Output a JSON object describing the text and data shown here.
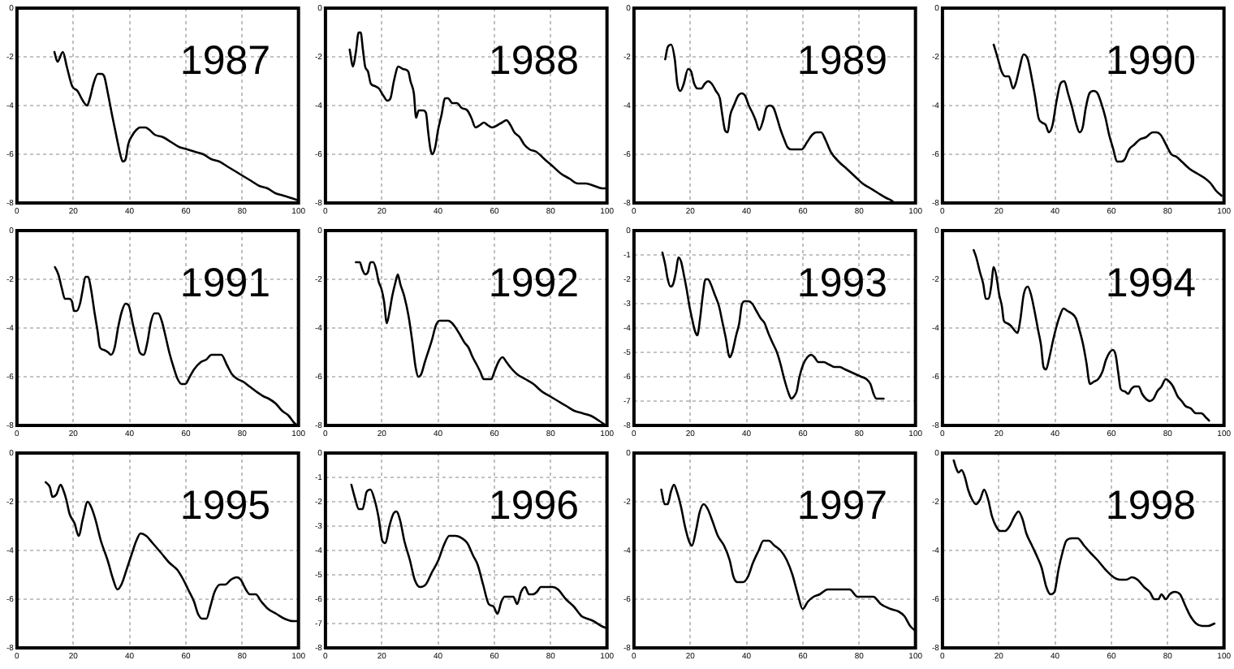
{
  "chart_data": [
    {
      "type": "line",
      "title": "1987",
      "color": "#000000",
      "xlim": [
        0,
        100
      ],
      "ylim": [
        -8,
        0
      ],
      "xticks": [
        0,
        20,
        40,
        60,
        80,
        100
      ],
      "yticks": [
        0,
        -2,
        -4,
        -6,
        -8
      ],
      "grid": true,
      "x": [
        13.3,
        14.4,
        16.3,
        17.7,
        19.6,
        21.5,
        23.4,
        24.9,
        25.9,
        27.2,
        28.7,
        30.0,
        31.0,
        32.3,
        33.8,
        35.4,
        36.9,
        37.6,
        38.6,
        39.5,
        41.1,
        42.4,
        43.7,
        45.6,
        47.1,
        49.0,
        51.9,
        54.8,
        57.6,
        60.5,
        63.3,
        66.2,
        69.0,
        71.9,
        74.7,
        77.6,
        80.4,
        83.3,
        86.1,
        89.0,
        91.8,
        94.7,
        97.5,
        100
      ],
      "values": [
        -1.8,
        -2.2,
        -1.8,
        -2.4,
        -3.2,
        -3.4,
        -3.8,
        -4.0,
        -3.7,
        -3.1,
        -2.7,
        -2.7,
        -2.8,
        -3.5,
        -4.4,
        -5.3,
        -6.1,
        -6.3,
        -6.2,
        -5.6,
        -5.2,
        -5.0,
        -4.9,
        -4.9,
        -5.0,
        -5.2,
        -5.3,
        -5.5,
        -5.7,
        -5.8,
        -5.9,
        -6.0,
        -6.2,
        -6.3,
        -6.5,
        -6.7,
        -6.9,
        -7.1,
        -7.3,
        -7.4,
        -7.6,
        -7.7,
        -7.8,
        -7.9
      ]
    },
    {
      "type": "line",
      "title": "1988",
      "color": "#000000",
      "xlim": [
        0,
        100
      ],
      "ylim": [
        -8,
        0
      ],
      "xticks": [
        0,
        20,
        40,
        60,
        80,
        100
      ],
      "yticks": [
        0,
        -2,
        -4,
        -6,
        -8
      ],
      "grid": true,
      "x": [
        8.6,
        9.8,
        10.8,
        11.8,
        12.5,
        13.3,
        14.1,
        15.1,
        16.1,
        17.6,
        19.0,
        20.6,
        22.0,
        23.1,
        24.3,
        25.9,
        27.5,
        29.4,
        30.2,
        31.4,
        32.2,
        33.1,
        34.7,
        35.7,
        36.5,
        37.3,
        38.0,
        39.0,
        40.0,
        41.2,
        42.5,
        43.5,
        45.1,
        46.7,
        48.4,
        50.4,
        51.8,
        53.3,
        54.9,
        56.3,
        57.6,
        59.2,
        61.2,
        62.7,
        64.3,
        65.7,
        67.1,
        69.0,
        70.6,
        72.5,
        74.9,
        77.8,
        80.8,
        83.7,
        86.7,
        89.6,
        92.5,
        95.5,
        98.4,
        100
      ],
      "values": [
        -1.7,
        -2.4,
        -1.8,
        -1.0,
        -1.0,
        -1.7,
        -2.4,
        -2.6,
        -3.1,
        -3.2,
        -3.3,
        -3.6,
        -3.8,
        -3.7,
        -3.0,
        -2.4,
        -2.5,
        -2.6,
        -3.0,
        -3.5,
        -4.5,
        -4.2,
        -4.2,
        -4.3,
        -5.1,
        -5.8,
        -6.0,
        -5.7,
        -5.0,
        -4.4,
        -3.7,
        -3.7,
        -3.9,
        -3.9,
        -4.1,
        -4.2,
        -4.5,
        -4.9,
        -4.8,
        -4.7,
        -4.8,
        -4.9,
        -4.8,
        -4.7,
        -4.6,
        -4.8,
        -5.1,
        -5.3,
        -5.6,
        -5.8,
        -5.9,
        -6.2,
        -6.5,
        -6.8,
        -7.0,
        -7.2,
        -7.2,
        -7.3,
        -7.4,
        -7.4
      ]
    },
    {
      "type": "line",
      "title": "1989",
      "color": "#000000",
      "xlim": [
        0,
        100
      ],
      "ylim": [
        -8,
        0
      ],
      "xticks": [
        0,
        20,
        40,
        60,
        80,
        100
      ],
      "yticks": [
        0,
        -2,
        -4,
        -6,
        -8
      ],
      "grid": true,
      "x": [
        11.1,
        12.0,
        13.2,
        14.5,
        15.4,
        16.5,
        17.7,
        19.2,
        20.3,
        21.4,
        22.6,
        23.9,
        25.2,
        26.3,
        27.6,
        29.1,
        30.5,
        31.4,
        32.3,
        33.3,
        34.2,
        35.5,
        37.0,
        38.3,
        39.5,
        40.8,
        42.1,
        43.2,
        44.5,
        45.9,
        47.0,
        48.3,
        49.6,
        50.8,
        52.1,
        53.4,
        54.5,
        55.8,
        57.7,
        59.6,
        61.5,
        63.3,
        64.8,
        66.5,
        68.0,
        69.9,
        72.7,
        75.6,
        78.4,
        81.2,
        84.0,
        86.8,
        89.7,
        91.5,
        92.5
      ],
      "values": [
        -2.1,
        -1.6,
        -1.5,
        -2.1,
        -3.1,
        -3.4,
        -3.1,
        -2.5,
        -2.6,
        -3.1,
        -3.3,
        -3.3,
        -3.1,
        -3.0,
        -3.1,
        -3.4,
        -3.7,
        -4.4,
        -5.0,
        -5.1,
        -4.4,
        -4.0,
        -3.6,
        -3.5,
        -3.6,
        -4.0,
        -4.3,
        -4.6,
        -5.0,
        -4.6,
        -4.1,
        -4.0,
        -4.1,
        -4.5,
        -5.0,
        -5.4,
        -5.7,
        -5.8,
        -5.8,
        -5.8,
        -5.5,
        -5.2,
        -5.1,
        -5.1,
        -5.4,
        -5.9,
        -6.3,
        -6.6,
        -6.9,
        -7.2,
        -7.4,
        -7.6,
        -7.8,
        -7.9,
        -8.0
      ]
    },
    {
      "type": "line",
      "title": "1990",
      "color": "#000000",
      "xlim": [
        0,
        100
      ],
      "ylim": [
        -8,
        0
      ],
      "xticks": [
        0,
        20,
        40,
        60,
        80,
        100
      ],
      "yticks": [
        0,
        -2,
        -4,
        -6,
        -8
      ],
      "grid": true,
      "x": [
        18.2,
        19.5,
        21.0,
        22.3,
        23.6,
        25.1,
        26.0,
        27.3,
        28.8,
        30.3,
        31.6,
        33.0,
        34.1,
        35.4,
        36.7,
        37.8,
        39.1,
        40.4,
        41.9,
        43.3,
        44.6,
        46.1,
        47.6,
        48.7,
        49.8,
        50.9,
        52.2,
        53.7,
        55.1,
        56.4,
        57.9,
        59.2,
        60.7,
        62.0,
        63.5,
        64.8,
        66.3,
        68.2,
        70.0,
        72.3,
        74.7,
        76.0,
        77.5,
        79.4,
        81.3,
        83.1,
        85.0,
        87.8,
        90.6,
        93.4,
        95.3,
        97.2,
        99.1
      ],
      "values": [
        -1.5,
        -2.0,
        -2.6,
        -2.8,
        -2.8,
        -3.3,
        -3.1,
        -2.5,
        -1.9,
        -2.1,
        -2.8,
        -3.7,
        -4.5,
        -4.7,
        -4.8,
        -5.1,
        -4.8,
        -3.9,
        -3.1,
        -3.0,
        -3.5,
        -4.1,
        -4.8,
        -5.1,
        -4.9,
        -4.1,
        -3.5,
        -3.4,
        -3.5,
        -3.9,
        -4.5,
        -5.2,
        -5.8,
        -6.3,
        -6.3,
        -6.2,
        -5.8,
        -5.6,
        -5.4,
        -5.3,
        -5.1,
        -5.1,
        -5.2,
        -5.6,
        -6.0,
        -6.1,
        -6.3,
        -6.6,
        -6.8,
        -7.0,
        -7.2,
        -7.5,
        -7.7
      ]
    },
    {
      "type": "line",
      "title": "1991",
      "color": "#000000",
      "xlim": [
        0,
        100
      ],
      "ylim": [
        -8,
        0
      ],
      "xticks": [
        0,
        20,
        40,
        60,
        80,
        100
      ],
      "yticks": [
        0,
        -2,
        -4,
        -6,
        -8
      ],
      "grid": true,
      "x": [
        13.5,
        14.7,
        16.0,
        17.0,
        18.5,
        19.5,
        20.3,
        21.2,
        22.4,
        23.4,
        24.3,
        25.3,
        26.3,
        27.6,
        28.6,
        29.5,
        30.9,
        32.4,
        33.4,
        34.7,
        35.9,
        37.3,
        38.6,
        39.8,
        41.1,
        42.5,
        43.6,
        45.0,
        46.3,
        47.5,
        48.8,
        50.2,
        51.4,
        52.7,
        54.1,
        55.6,
        57.1,
        58.5,
        59.8,
        61.4,
        62.9,
        65.3,
        67.2,
        69.1,
        71.0,
        72.6,
        74.5,
        76.4,
        78.4,
        80.3,
        82.6,
        84.9,
        87.5,
        89.4,
        91.9,
        94.2,
        96.5,
        98.5,
        99.6
      ],
      "values": [
        -1.5,
        -1.8,
        -2.4,
        -2.8,
        -2.8,
        -2.9,
        -3.3,
        -3.3,
        -3.0,
        -2.4,
        -1.9,
        -1.9,
        -2.4,
        -3.4,
        -4.1,
        -4.8,
        -4.9,
        -5.0,
        -5.1,
        -4.8,
        -4.0,
        -3.3,
        -3.0,
        -3.1,
        -3.8,
        -4.5,
        -5.0,
        -5.1,
        -4.6,
        -3.8,
        -3.4,
        -3.4,
        -3.7,
        -4.3,
        -5.0,
        -5.6,
        -6.1,
        -6.3,
        -6.3,
        -6.0,
        -5.7,
        -5.4,
        -5.3,
        -5.1,
        -5.1,
        -5.1,
        -5.5,
        -5.9,
        -6.1,
        -6.2,
        -6.4,
        -6.6,
        -6.8,
        -6.9,
        -7.1,
        -7.4,
        -7.6,
        -7.9,
        -8.0
      ]
    },
    {
      "type": "line",
      "title": "1992",
      "color": "#000000",
      "xlim": [
        0,
        100
      ],
      "ylim": [
        -8,
        0
      ],
      "xticks": [
        0,
        20,
        40,
        60,
        80,
        100
      ],
      "yticks": [
        0,
        -2,
        -4,
        -6,
        -8
      ],
      "grid": true,
      "x": [
        10.8,
        12.2,
        13.1,
        14.1,
        15.1,
        16.0,
        17.0,
        18.0,
        18.9,
        19.9,
        20.8,
        21.8,
        22.8,
        23.7,
        24.7,
        25.7,
        26.6,
        28.0,
        29.5,
        30.9,
        32.0,
        33.0,
        34.0,
        35.3,
        36.7,
        37.8,
        39.2,
        40.5,
        42.1,
        43.6,
        45.0,
        46.3,
        47.9,
        49.4,
        50.8,
        52.3,
        53.7,
        55.0,
        56.2,
        57.5,
        58.9,
        60.0,
        61.4,
        62.9,
        64.3,
        65.6,
        68.1,
        71.0,
        73.9,
        76.8,
        79.7,
        82.6,
        85.5,
        88.4,
        91.3,
        94.2,
        97.1,
        99.6
      ],
      "values": [
        -1.3,
        -1.3,
        -1.6,
        -1.8,
        -1.7,
        -1.3,
        -1.3,
        -1.6,
        -2.1,
        -2.4,
        -2.9,
        -3.8,
        -3.3,
        -2.7,
        -2.2,
        -1.8,
        -2.2,
        -2.7,
        -3.5,
        -4.6,
        -5.6,
        -6.0,
        -5.9,
        -5.4,
        -4.9,
        -4.5,
        -3.9,
        -3.7,
        -3.7,
        -3.7,
        -3.8,
        -4.0,
        -4.3,
        -4.6,
        -4.8,
        -5.2,
        -5.5,
        -5.8,
        -6.1,
        -6.1,
        -6.1,
        -5.8,
        -5.4,
        -5.2,
        -5.4,
        -5.6,
        -5.9,
        -6.1,
        -6.3,
        -6.6,
        -6.8,
        -7.0,
        -7.2,
        -7.4,
        -7.5,
        -7.6,
        -7.8,
        -8.0
      ]
    },
    {
      "type": "line",
      "title": "1993",
      "color": "#000000",
      "xlim": [
        0,
        100
      ],
      "ylim": [
        -8,
        0
      ],
      "xticks": [
        0,
        20,
        40,
        60,
        80,
        100
      ],
      "yticks": [
        0,
        -1,
        -2,
        -3,
        -4,
        -5,
        -6,
        -7,
        -8
      ],
      "grid": true,
      "x": [
        10.1,
        11.1,
        12.0,
        13.0,
        13.9,
        14.9,
        15.8,
        16.8,
        17.7,
        18.7,
        19.7,
        20.6,
        21.6,
        22.5,
        23.5,
        24.4,
        25.4,
        26.3,
        27.3,
        28.6,
        30.2,
        31.5,
        32.6,
        34.0,
        34.9,
        36.3,
        37.4,
        38.2,
        39.3,
        40.6,
        42.0,
        43.5,
        45.0,
        46.4,
        47.7,
        49.2,
        50.8,
        52.1,
        53.4,
        55.0,
        55.9,
        56.9,
        57.8,
        58.8,
        60.1,
        61.6,
        63.0,
        64.1,
        65.5,
        67.4,
        69.3,
        71.2,
        73.1,
        75.0,
        76.9,
        78.8,
        80.7,
        82.6,
        84.0,
        85.1,
        86.1,
        87.4,
        88.7
      ],
      "values": [
        -0.9,
        -1.4,
        -2.0,
        -2.3,
        -2.2,
        -1.7,
        -1.1,
        -1.3,
        -1.8,
        -2.4,
        -3.1,
        -3.6,
        -4.1,
        -4.3,
        -3.6,
        -2.7,
        -2.0,
        -2.0,
        -2.2,
        -2.6,
        -3.1,
        -3.8,
        -4.4,
        -5.2,
        -5.0,
        -4.3,
        -3.8,
        -3.1,
        -2.9,
        -2.9,
        -3.0,
        -3.3,
        -3.6,
        -3.8,
        -4.2,
        -4.6,
        -5.0,
        -5.5,
        -6.1,
        -6.7,
        -6.9,
        -6.8,
        -6.6,
        -6.0,
        -5.5,
        -5.2,
        -5.1,
        -5.2,
        -5.4,
        -5.4,
        -5.5,
        -5.6,
        -5.6,
        -5.7,
        -5.8,
        -5.9,
        -6.0,
        -6.1,
        -6.3,
        -6.7,
        -6.9,
        -6.9,
        -6.9
      ]
    },
    {
      "type": "line",
      "title": "1994",
      "color": "#000000",
      "xlim": [
        0,
        100
      ],
      "ylim": [
        -8,
        0
      ],
      "xticks": [
        0,
        20,
        40,
        60,
        80,
        100
      ],
      "yticks": [
        0,
        -2,
        -4,
        -6,
        -8
      ],
      "grid": true,
      "x": [
        11.1,
        12.0,
        13.3,
        14.5,
        15.4,
        16.4,
        17.3,
        18.2,
        19.2,
        20.1,
        21.1,
        21.8,
        22.9,
        24.2,
        25.6,
        26.7,
        27.6,
        28.9,
        30.3,
        31.4,
        32.7,
        34.0,
        35.0,
        35.9,
        36.8,
        38.0,
        39.3,
        40.6,
        41.7,
        43.0,
        44.4,
        45.9,
        47.4,
        48.7,
        50.0,
        51.1,
        52.4,
        53.8,
        55.3,
        56.8,
        58.1,
        59.4,
        60.5,
        61.5,
        62.4,
        63.3,
        64.7,
        66.0,
        67.1,
        68.4,
        69.7,
        70.9,
        72.2,
        73.7,
        75.0,
        76.3,
        77.8,
        79.3,
        80.6,
        81.9,
        83.5,
        85.0,
        86.3,
        88.2,
        90.0,
        91.9,
        93.8,
        94.7
      ],
      "values": [
        -0.8,
        -1.1,
        -1.7,
        -2.2,
        -2.8,
        -2.8,
        -2.3,
        -1.5,
        -1.9,
        -2.6,
        -3.1,
        -3.7,
        -3.8,
        -3.9,
        -4.1,
        -4.2,
        -3.7,
        -2.6,
        -2.3,
        -2.6,
        -3.3,
        -4.1,
        -4.7,
        -5.6,
        -5.7,
        -5.2,
        -4.5,
        -3.9,
        -3.5,
        -3.2,
        -3.3,
        -3.4,
        -3.6,
        -4.1,
        -4.7,
        -5.4,
        -6.3,
        -6.2,
        -6.1,
        -5.8,
        -5.3,
        -5.0,
        -4.9,
        -5.1,
        -5.8,
        -6.5,
        -6.6,
        -6.7,
        -6.5,
        -6.4,
        -6.4,
        -6.7,
        -6.9,
        -7.0,
        -6.9,
        -6.6,
        -6.4,
        -6.1,
        -6.2,
        -6.4,
        -6.8,
        -7.0,
        -7.2,
        -7.3,
        -7.5,
        -7.5,
        -7.7,
        -7.8
      ]
    },
    {
      "type": "line",
      "title": "1995",
      "color": "#000000",
      "xlim": [
        0,
        100
      ],
      "ylim": [
        -8,
        0
      ],
      "xticks": [
        0,
        20,
        40,
        60,
        80,
        100
      ],
      "yticks": [
        0,
        -2,
        -4,
        -6,
        -8
      ],
      "grid": true,
      "x": [
        10.2,
        11.7,
        12.6,
        14.0,
        15.5,
        16.4,
        17.5,
        18.7,
        20.5,
        21.9,
        23.4,
        25.1,
        26.3,
        27.8,
        29.8,
        32.2,
        34.2,
        35.7,
        37.1,
        38.9,
        40.9,
        42.4,
        43.9,
        45.9,
        48.2,
        51.2,
        54.1,
        57.0,
        59.1,
        60.8,
        62.9,
        64.3,
        65.8,
        67.3,
        68.7,
        70.2,
        72.2,
        74.0,
        76.0,
        78.1,
        79.5,
        81.3,
        82.7,
        84.8,
        86.8,
        89.2,
        92.1,
        95.0,
        98.0,
        100
      ],
      "values": [
        -1.2,
        -1.4,
        -1.8,
        -1.7,
        -1.3,
        -1.5,
        -1.9,
        -2.5,
        -2.9,
        -3.4,
        -2.7,
        -2.0,
        -2.2,
        -2.7,
        -3.6,
        -4.4,
        -5.2,
        -5.6,
        -5.4,
        -4.8,
        -4.1,
        -3.6,
        -3.3,
        -3.4,
        -3.7,
        -4.1,
        -4.5,
        -4.8,
        -5.2,
        -5.6,
        -6.1,
        -6.6,
        -6.8,
        -6.8,
        -6.3,
        -5.7,
        -5.4,
        -5.4,
        -5.2,
        -5.1,
        -5.2,
        -5.6,
        -5.8,
        -5.8,
        -6.1,
        -6.4,
        -6.6,
        -6.8,
        -6.9,
        -6.9
      ]
    },
    {
      "type": "line",
      "title": "1996",
      "color": "#000000",
      "xlim": [
        0,
        100
      ],
      "ylim": [
        -8,
        0
      ],
      "xticks": [
        0,
        20,
        40,
        60,
        80,
        100
      ],
      "yticks": [
        0,
        -1,
        -2,
        -3,
        -4,
        -5,
        -6,
        -7,
        -8
      ],
      "grid": true,
      "x": [
        9.2,
        10.6,
        11.8,
        13.2,
        14.6,
        16.0,
        17.4,
        18.8,
        20.2,
        21.3,
        22.7,
        24.1,
        25.2,
        26.6,
        28.0,
        30.0,
        31.7,
        33.6,
        35.6,
        37.8,
        40.1,
        42.0,
        44.0,
        46.2,
        48.5,
        50.4,
        52.4,
        54.1,
        56.0,
        58.0,
        59.7,
        61.1,
        62.5,
        63.6,
        65.3,
        66.7,
        68.1,
        69.5,
        70.9,
        72.3,
        73.7,
        75.1,
        76.5,
        78.4,
        80.7,
        82.6,
        85.4,
        88.2,
        91.0,
        93.0,
        95.2,
        98.0,
        100
      ],
      "values": [
        -1.3,
        -1.9,
        -2.3,
        -2.3,
        -1.6,
        -1.5,
        -1.9,
        -2.6,
        -3.6,
        -3.7,
        -3.0,
        -2.5,
        -2.4,
        -2.8,
        -3.6,
        -4.4,
        -5.2,
        -5.5,
        -5.4,
        -4.9,
        -4.4,
        -3.8,
        -3.4,
        -3.4,
        -3.5,
        -3.7,
        -4.2,
        -4.6,
        -5.4,
        -6.2,
        -6.3,
        -6.6,
        -6.1,
        -5.9,
        -5.9,
        -5.9,
        -6.2,
        -5.7,
        -5.5,
        -5.8,
        -5.8,
        -5.7,
        -5.5,
        -5.5,
        -5.5,
        -5.6,
        -6.0,
        -6.3,
        -6.7,
        -6.8,
        -6.9,
        -7.1,
        -7.2
      ]
    },
    {
      "type": "line",
      "title": "1997",
      "color": "#000000",
      "xlim": [
        0,
        100
      ],
      "ylim": [
        -8,
        0
      ],
      "xticks": [
        0,
        20,
        40,
        60,
        80,
        100
      ],
      "yticks": [
        0,
        -2,
        -4,
        -6,
        -8
      ],
      "grid": true,
      "x": [
        9.7,
        10.9,
        12.0,
        13.1,
        14.2,
        15.3,
        16.7,
        18.1,
        19.5,
        20.6,
        22.0,
        23.4,
        24.8,
        26.2,
        27.9,
        29.8,
        32.0,
        34.0,
        35.4,
        36.8,
        38.7,
        40.4,
        42.3,
        44.3,
        46.0,
        47.9,
        49.9,
        52.1,
        54.3,
        56.3,
        58.2,
        59.9,
        61.8,
        63.8,
        66.0,
        68.8,
        71.6,
        73.8,
        76.6,
        79.4,
        82.2,
        85.0,
        87.7,
        91.1,
        93.9,
        96.1,
        98.1,
        100
      ],
      "values": [
        -1.5,
        -2.1,
        -2.1,
        -1.6,
        -1.3,
        -1.6,
        -2.2,
        -3.0,
        -3.6,
        -3.8,
        -3.2,
        -2.4,
        -2.1,
        -2.3,
        -2.8,
        -3.4,
        -3.8,
        -4.4,
        -5.1,
        -5.3,
        -5.3,
        -5.1,
        -4.5,
        -4.0,
        -3.6,
        -3.6,
        -3.8,
        -4.0,
        -4.4,
        -5.0,
        -5.8,
        -6.4,
        -6.1,
        -5.9,
        -5.8,
        -5.6,
        -5.6,
        -5.6,
        -5.6,
        -5.9,
        -5.9,
        -5.9,
        -6.2,
        -6.4,
        -6.5,
        -6.7,
        -7.1,
        -7.3
      ]
    },
    {
      "type": "line",
      "title": "1998",
      "color": "#000000",
      "xlim": [
        0,
        100
      ],
      "ylim": [
        -8,
        0
      ],
      "xticks": [
        0,
        20,
        40,
        60,
        80,
        100
      ],
      "yticks": [
        0,
        -2,
        -4,
        -6,
        -8
      ],
      "grid": true,
      "x": [
        4.0,
        4.8,
        5.7,
        6.8,
        8.0,
        9.1,
        10.5,
        11.9,
        13.4,
        14.8,
        16.2,
        17.6,
        19.0,
        20.5,
        22.2,
        23.9,
        25.6,
        27.0,
        28.4,
        29.8,
        31.8,
        33.8,
        35.2,
        36.9,
        38.4,
        39.8,
        41.2,
        42.6,
        44.0,
        46.0,
        48.0,
        50.3,
        52.6,
        55.1,
        58.0,
        60.8,
        63.1,
        65.3,
        67.3,
        69.3,
        71.6,
        73.6,
        75.3,
        76.7,
        77.8,
        79.3,
        80.7,
        82.4,
        84.4,
        86.4,
        88.1,
        90.1,
        92.3,
        94.3,
        96.6
      ],
      "values": [
        -0.3,
        -0.6,
        -0.8,
        -0.7,
        -1.0,
        -1.5,
        -1.9,
        -2.1,
        -1.9,
        -1.5,
        -1.9,
        -2.6,
        -3.0,
        -3.2,
        -3.2,
        -3.0,
        -2.6,
        -2.4,
        -2.7,
        -3.3,
        -3.8,
        -4.3,
        -4.7,
        -5.5,
        -5.8,
        -5.7,
        -4.8,
        -4.1,
        -3.6,
        -3.5,
        -3.5,
        -3.8,
        -4.1,
        -4.4,
        -4.8,
        -5.1,
        -5.2,
        -5.2,
        -5.1,
        -5.2,
        -5.5,
        -5.7,
        -6.0,
        -6.0,
        -5.8,
        -6.0,
        -5.8,
        -5.7,
        -5.8,
        -6.3,
        -6.7,
        -7.0,
        -7.1,
        -7.1,
        -7.0
      ]
    }
  ]
}
